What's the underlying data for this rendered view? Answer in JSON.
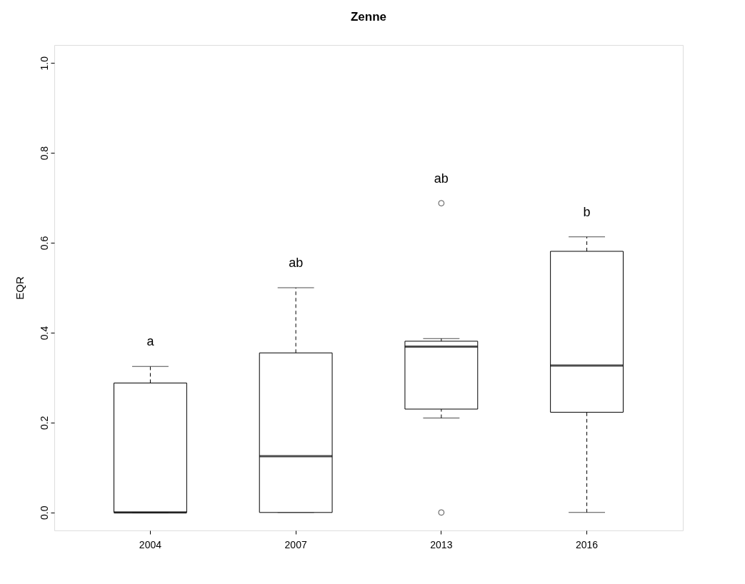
{
  "chart_data": {
    "type": "box",
    "title": "Zenne",
    "ylabel": "EQR",
    "categories": [
      "2004",
      "2007",
      "2013",
      "2016"
    ],
    "boxes": [
      {
        "low": 0,
        "q1": 0,
        "median": 0,
        "q3": 0.288,
        "high": 0.325
      },
      {
        "low": 0,
        "q1": 0,
        "median": 0.125,
        "q3": 0.355,
        "high": 0.5
      },
      {
        "low": 0.21,
        "q1": 0.23,
        "median": 0.369,
        "q3": 0.381,
        "high": 0.387,
        "outliers": [
          0.688,
          0
        ]
      },
      {
        "low": 0,
        "q1": 0.223,
        "median": 0.327,
        "q3": 0.581,
        "high": 0.613
      }
    ],
    "ylim": [
      -0.04,
      1.04
    ],
    "yticks": [
      {
        "value": 0,
        "label": "0.0"
      },
      {
        "value": 0.2,
        "label": "0.2"
      },
      {
        "value": 0.4,
        "label": "0.4"
      },
      {
        "value": 0.6,
        "label": "0.6"
      },
      {
        "value": 0.8,
        "label": "0.8"
      },
      {
        "value": 1,
        "label": "1.0"
      }
    ],
    "annotations": [
      "a",
      "ab",
      "ab",
      "b"
    ]
  }
}
